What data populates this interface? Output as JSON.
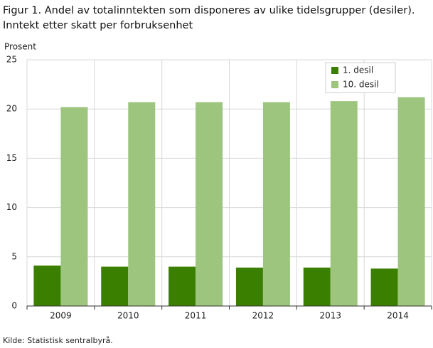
{
  "chart_data": {
    "type": "bar",
    "title": [
      "Figur 1. Andel av totalinntekten som disponeres av ulike tidelsgrupper (desiler).",
      "Inntekt etter skatt per forbruksenhet"
    ],
    "y_label": "Prosent",
    "source": "Kilde: Statistisk sentralbyrå.",
    "categories": [
      "2009",
      "2010",
      "2011",
      "2012",
      "2013",
      "2014"
    ],
    "series": [
      {
        "name": "1. desil",
        "color": "#3b7f00",
        "values": [
          4.1,
          4.0,
          4.0,
          3.9,
          3.9,
          3.8
        ]
      },
      {
        "name": "10. desil",
        "color": "#9dc57e",
        "values": [
          20.2,
          20.7,
          20.7,
          20.7,
          20.8,
          21.2
        ]
      }
    ],
    "ylim": [
      0,
      25
    ],
    "yticks": [
      0,
      5,
      10,
      15,
      20,
      25
    ],
    "grid": true,
    "legend": "top-right"
  }
}
